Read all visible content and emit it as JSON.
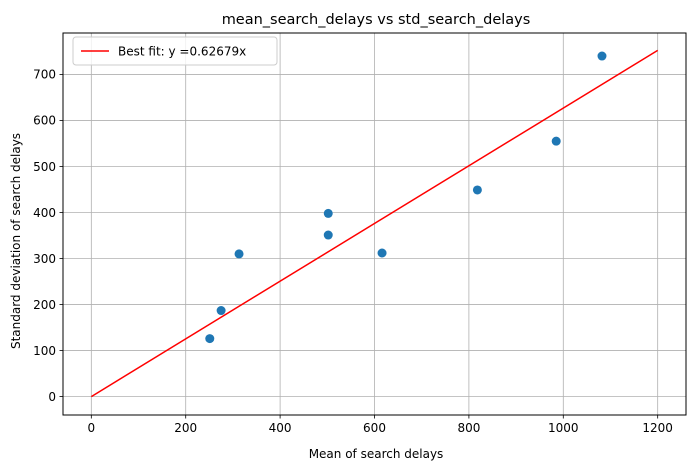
{
  "chart_data": {
    "type": "scatter",
    "title": "mean_search_delays vs std_search_delays",
    "xlabel": "Mean of search delays",
    "ylabel": "Standard deviation of search delays",
    "xlim": [
      -60,
      1260
    ],
    "ylim": [
      -40,
      790
    ],
    "xticks": [
      0,
      200,
      400,
      600,
      800,
      1000,
      1200
    ],
    "yticks": [
      0,
      100,
      200,
      300,
      400,
      500,
      600,
      700
    ],
    "grid": true,
    "legend_position": "top-left",
    "points": [
      {
        "x": 251,
        "y": 126
      },
      {
        "x": 275,
        "y": 187
      },
      {
        "x": 313,
        "y": 310
      },
      {
        "x": 502,
        "y": 351
      },
      {
        "x": 502,
        "y": 398
      },
      {
        "x": 616,
        "y": 312
      },
      {
        "x": 818,
        "y": 449
      },
      {
        "x": 985,
        "y": 555
      },
      {
        "x": 1082,
        "y": 740
      }
    ],
    "fit_line": {
      "label": "Best fit: y =0.62679x",
      "slope": 0.62679,
      "x_range": [
        0,
        1200
      ],
      "color": "#ff0000"
    },
    "point_color": "#1f77b4"
  }
}
